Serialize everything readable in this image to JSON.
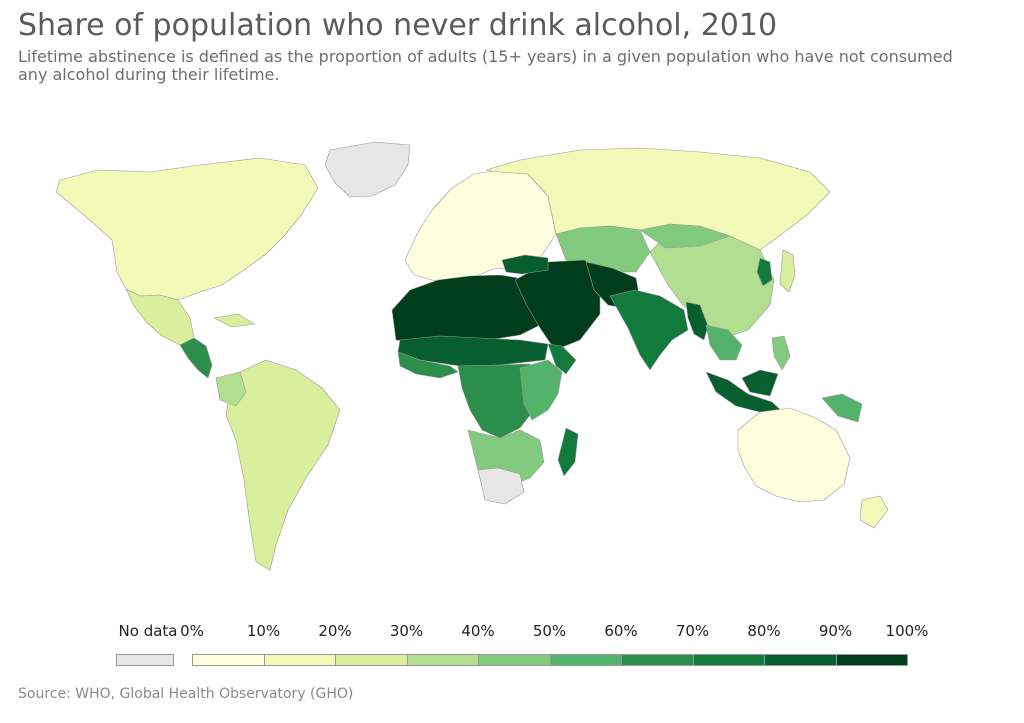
{
  "title": "Share of population who never drink alcohol, 2010",
  "subtitle_lines": [
    "Lifetime abstinence is defined as the proportion of adults (15+ years) in a given population who have not consumed",
    "any alcohol during their lifetime."
  ],
  "source": "Source: WHO, Global Health Observatory (GHO)",
  "legend": {
    "no_data_label": "No data",
    "no_data_color": "#e6e6e6",
    "tick_labels": [
      "0%",
      "10%",
      "20%",
      "30%",
      "40%",
      "50%",
      "60%",
      "70%",
      "80%",
      "90%",
      "100%"
    ],
    "bin_colors": [
      "#ffffe0",
      "#f3f9b6",
      "#d9ef9d",
      "#b1df8f",
      "#82cb7e",
      "#54b36a",
      "#2b8f4b",
      "#137a3d",
      "#075e2e",
      "#003d1b"
    ]
  },
  "colors": {
    "ocean": "#ffffff",
    "border": "#9a9a9a",
    "title": "#5b5b5b",
    "subtitle": "#6e6e6e",
    "source": "#8a8a8a"
  },
  "map_regions": [
    {
      "region": "Greenland",
      "bin": "no-data"
    },
    {
      "region": "North America",
      "bin": 1
    },
    {
      "region": "Mexico",
      "bin": 2
    },
    {
      "region": "Central America",
      "bin": 6
    },
    {
      "region": "Caribbean",
      "bin": 2
    },
    {
      "region": "South America",
      "bin": 2
    },
    {
      "region": "Colombia",
      "bin": 3
    },
    {
      "region": "Europe",
      "bin": 0
    },
    {
      "region": "Russia",
      "bin": 1
    },
    {
      "region": "Central Asia",
      "bin": 4
    },
    {
      "region": "China",
      "bin": 3
    },
    {
      "region": "Mongolia",
      "bin": 4
    },
    {
      "region": "Korea",
      "bin": 7
    },
    {
      "region": "Japan",
      "bin": 2
    },
    {
      "region": "North Africa",
      "bin": 9
    },
    {
      "region": "Middle East",
      "bin": 9
    },
    {
      "region": "Turkey",
      "bin": 8
    },
    {
      "region": "Pakistan and Afghanistan",
      "bin": 9
    },
    {
      "region": "India",
      "bin": 7
    },
    {
      "region": "Myanmar",
      "bin": 8
    },
    {
      "region": "Southeast Asia",
      "bin": 5
    },
    {
      "region": "Indonesia",
      "bin": 8
    },
    {
      "region": "Philippines",
      "bin": 4
    },
    {
      "region": "Papua New Guinea",
      "bin": 5
    },
    {
      "region": "Sahel",
      "bin": 8
    },
    {
      "region": "West Africa",
      "bin": 6
    },
    {
      "region": "Central Africa",
      "bin": 6
    },
    {
      "region": "East Africa",
      "bin": 5
    },
    {
      "region": "Horn of Africa",
      "bin": 7
    },
    {
      "region": "Southern Africa",
      "bin": 4
    },
    {
      "region": "South Africa",
      "bin": "no-data"
    },
    {
      "region": "Madagascar",
      "bin": 7
    },
    {
      "region": "Australia",
      "bin": 0
    },
    {
      "region": "New Zealand",
      "bin": 1
    }
  ]
}
